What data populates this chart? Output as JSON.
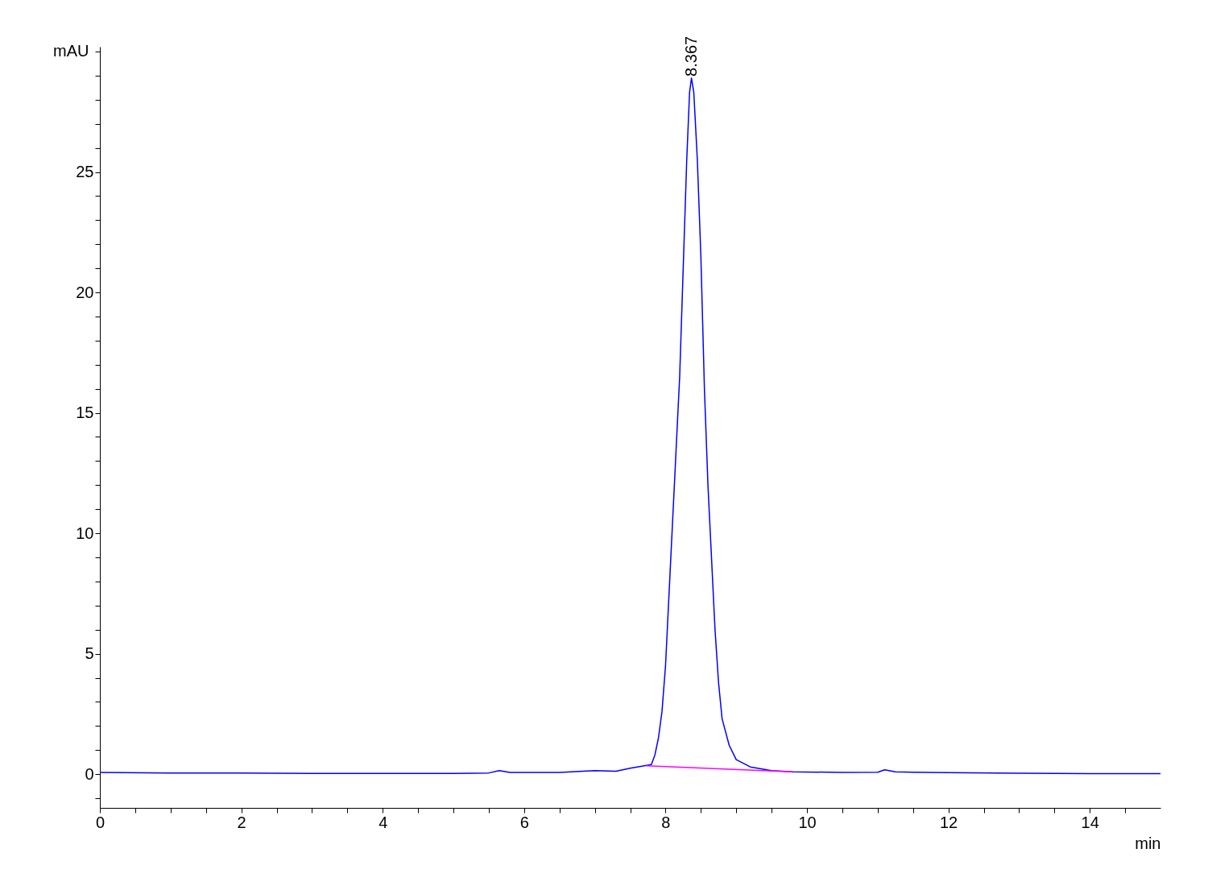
{
  "chart_data": {
    "type": "line",
    "xlabel": "min",
    "ylabel": "mAU",
    "xlim": [
      0,
      15
    ],
    "ylim": [
      -1.4,
      30.2
    ],
    "xticks": [
      0,
      {
        "value": 0.5,
        "label": null
      },
      {
        "value": 1,
        "label": null
      },
      {
        "value": 1.5,
        "label": null
      },
      2,
      {
        "value": 2.5,
        "label": null
      },
      {
        "value": 3,
        "label": null
      },
      {
        "value": 3.5,
        "label": null
      },
      4,
      {
        "value": 4.5,
        "label": null
      },
      {
        "value": 5,
        "label": null
      },
      {
        "value": 5.5,
        "label": null
      },
      6,
      {
        "value": 6.5,
        "label": null
      },
      {
        "value": 7,
        "label": null
      },
      {
        "value": 7.5,
        "label": null
      },
      8,
      {
        "value": 8.5,
        "label": null
      },
      {
        "value": 9,
        "label": null
      },
      {
        "value": 9.5,
        "label": null
      },
      10,
      {
        "value": 10.5,
        "label": null
      },
      {
        "value": 11,
        "label": null
      },
      {
        "value": 11.5,
        "label": null
      },
      12,
      {
        "value": 12.5,
        "label": null
      },
      {
        "value": 13,
        "label": null
      },
      {
        "value": 13.5,
        "label": null
      },
      14,
      {
        "value": 14.5,
        "label": null
      }
    ],
    "yticks": [
      {
        "value": -1,
        "label": null
      },
      0,
      {
        "value": 1,
        "label": null
      },
      {
        "value": 2,
        "label": null
      },
      {
        "value": 3,
        "label": null
      },
      {
        "value": 4,
        "label": null
      },
      5,
      {
        "value": 6,
        "label": null
      },
      {
        "value": 7,
        "label": null
      },
      {
        "value": 8,
        "label": null
      },
      {
        "value": 9,
        "label": null
      },
      10,
      {
        "value": 11,
        "label": null
      },
      {
        "value": 12,
        "label": null
      },
      {
        "value": 13,
        "label": null
      },
      {
        "value": 14,
        "label": null
      },
      15,
      {
        "value": 16,
        "label": null
      },
      {
        "value": 17,
        "label": null
      },
      {
        "value": 18,
        "label": null
      },
      {
        "value": 19,
        "label": null
      },
      20,
      {
        "value": 21,
        "label": null
      },
      {
        "value": 22,
        "label": null
      },
      {
        "value": 23,
        "label": null
      },
      {
        "value": 24,
        "label": null
      },
      25,
      {
        "value": 26,
        "label": null
      },
      {
        "value": 27,
        "label": null
      },
      {
        "value": 28,
        "label": null
      },
      {
        "value": 29,
        "label": null
      },
      {
        "value": 30,
        "label": null
      }
    ],
    "grid": false,
    "line_style": "solid",
    "annotations": [
      {
        "text": "8.367",
        "x": 8.367,
        "y": 28.9
      }
    ],
    "series": [
      {
        "color": "#0000ff",
        "x": [
          0,
          1,
          2,
          3,
          4,
          5,
          5.5,
          5.65,
          5.8,
          6.5,
          7.0,
          7.3,
          7.5,
          7.7,
          7.8,
          7.85,
          7.9,
          7.95,
          8.0,
          8.05,
          8.1,
          8.15,
          8.2,
          8.25,
          8.3,
          8.34,
          8.367,
          8.4,
          8.45,
          8.5,
          8.55,
          8.6,
          8.65,
          8.7,
          8.75,
          8.8,
          8.9,
          9.0,
          9.2,
          9.5,
          9.8,
          10.5,
          11.0,
          11.1,
          11.25,
          11.5,
          12,
          13,
          14,
          15
        ],
        "values": [
          0.07,
          0.05,
          0.05,
          0.03,
          0.03,
          0.03,
          0.05,
          0.15,
          0.07,
          0.07,
          0.15,
          0.12,
          0.25,
          0.35,
          0.4,
          0.8,
          1.5,
          2.6,
          4.5,
          7.5,
          10.5,
          13.5,
          16.5,
          21,
          25.5,
          28.3,
          28.9,
          28.3,
          25.5,
          21.5,
          16,
          12,
          9,
          6,
          3.8,
          2.3,
          1.2,
          0.6,
          0.3,
          0.15,
          0.1,
          0.07,
          0.08,
          0.18,
          0.1,
          0.08,
          0.06,
          0.04,
          0.02,
          0.02
        ]
      },
      {
        "color": "#ff00ff",
        "x": [
          7.73,
          9.79
        ],
        "values": [
          0.35,
          0.1
        ]
      }
    ]
  }
}
